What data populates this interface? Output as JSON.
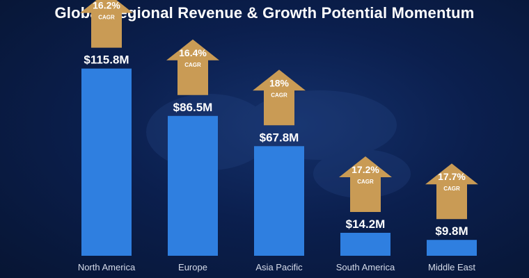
{
  "chart_data": {
    "type": "bar",
    "title": "Global Regional Revenue & Growth Potential Momentum",
    "categories": [
      "North America",
      "Europe",
      "Asia Pacific",
      "South America",
      "Middle East"
    ],
    "values": [
      115.8,
      86.5,
      67.8,
      14.2,
      9.8
    ],
    "value_labels": [
      "$115.8M",
      "$86.5M",
      "$67.8M",
      "$14.2M",
      "$9.8M"
    ],
    "cagr": [
      16.2,
      16.4,
      18,
      17.2,
      17.7
    ],
    "cagr_labels": [
      "16.2%",
      "16.4%",
      "18%",
      "17.2%",
      "17.7%"
    ],
    "cagr_caption": "CAGR",
    "ylim": [
      0,
      135
    ],
    "grid": false,
    "colors": {
      "bar": "#2f7fe0",
      "arrow": "#c99b55",
      "background": "#0b1f4e"
    }
  }
}
